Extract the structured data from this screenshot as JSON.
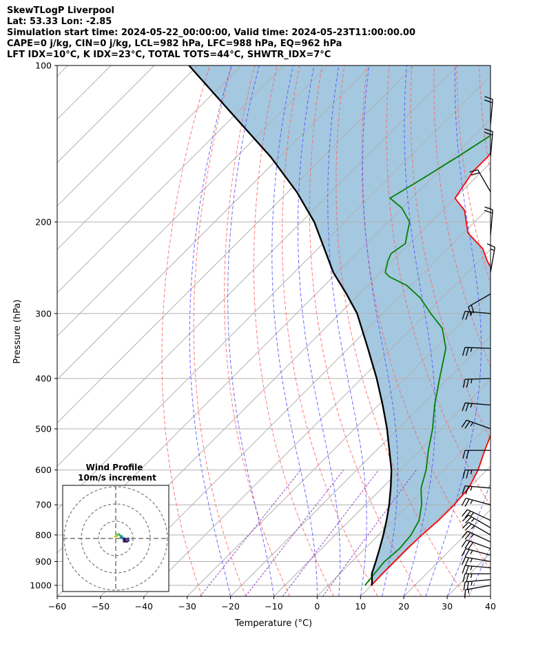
{
  "header": {
    "line1": "SkewTLogP Liverpool",
    "line2": "Lat: 53.33   Lon: -2.85",
    "line3": "Simulation start time: 2024-05-22_00:00:00, Valid time: 2024-05-23T11:00:00.00",
    "line4": "CAPE=0 j/kg, CIN=0 j/kg, LCL=982 hPa, LFC=988 hPa, EQ=962 hPa",
    "line5": "LFT IDX=10°C, K IDX=23°C, TOTAL TOTS=44°C, SHWTR_IDX=7°C"
  },
  "chart_data": {
    "type": "line",
    "title": "SkewTLogP Liverpool",
    "xlabel": "Temperature (°C)",
    "ylabel": "Pressure (hPa)",
    "xlim": [
      -60,
      40
    ],
    "ylim": [
      1050,
      100
    ],
    "yscale": "log",
    "skew": true,
    "grid": true,
    "xticks": [
      -60,
      -50,
      -40,
      -30,
      -20,
      -10,
      0,
      10,
      20,
      30,
      40
    ],
    "xtick_labels": [
      "−60",
      "−50",
      "−40",
      "−30",
      "−20",
      "−10",
      "0",
      "10",
      "20",
      "30",
      "40"
    ],
    "yticks": [
      1000,
      900,
      800,
      700,
      600,
      500,
      400,
      300,
      200,
      100
    ],
    "ytick_labels": [
      "1000",
      "900",
      "800",
      "700",
      "600",
      "500",
      "400",
      "300",
      "200",
      "100"
    ],
    "series": [
      {
        "name": "Temperature",
        "color": "#ff0000",
        "points": [
          [
            10,
            1000
          ],
          [
            9.8,
            950
          ],
          [
            9.8,
            900
          ],
          [
            9.8,
            850
          ],
          [
            10.0,
            800
          ],
          [
            10.5,
            750
          ],
          [
            10.5,
            700
          ],
          [
            10,
            650
          ],
          [
            8,
            600
          ],
          [
            5,
            550
          ],
          [
            2,
            500
          ],
          [
            -2.5,
            450
          ],
          [
            -8,
            400
          ],
          [
            -14,
            350
          ],
          [
            -21,
            310
          ],
          [
            -25,
            295
          ],
          [
            -28.5,
            275
          ],
          [
            -29,
            270
          ],
          [
            -31,
            260
          ],
          [
            -34,
            250
          ],
          [
            -38,
            238
          ],
          [
            -42,
            225
          ],
          [
            -49,
            210
          ],
          [
            -55,
            190
          ],
          [
            -60,
            180
          ],
          [
            -62,
            160
          ],
          [
            -62,
            150
          ],
          [
            -63,
            140
          ],
          [
            -64,
            130
          ],
          [
            -65,
            120
          ],
          [
            -65,
            110
          ],
          [
            -66,
            100
          ]
        ]
      },
      {
        "name": "Dewpoint",
        "color": "#008000",
        "points": [
          [
            8.5,
            1000
          ],
          [
            8,
            950
          ],
          [
            7.5,
            900
          ],
          [
            8,
            850
          ],
          [
            7.5,
            800
          ],
          [
            6,
            750
          ],
          [
            3,
            700
          ],
          [
            -1,
            650
          ],
          [
            -4,
            600
          ],
          [
            -8,
            550
          ],
          [
            -12,
            500
          ],
          [
            -17,
            450
          ],
          [
            -22,
            400
          ],
          [
            -27.5,
            350
          ],
          [
            -33,
            320
          ],
          [
            -39,
            300
          ],
          [
            -45,
            280
          ],
          [
            -51,
            265
          ],
          [
            -57,
            255
          ],
          [
            -59,
            250
          ],
          [
            -61,
            238
          ],
          [
            -62,
            230
          ],
          [
            -61,
            220
          ],
          [
            -63,
            210
          ],
          [
            -65,
            200
          ],
          [
            -70,
            188
          ],
          [
            -75,
            180
          ],
          [
            -72,
            165
          ],
          [
            -69,
            150
          ],
          [
            -66,
            135
          ],
          [
            -63,
            120
          ],
          [
            -60,
            110
          ],
          [
            -57,
            100
          ]
        ]
      },
      {
        "name": "Parcel",
        "color": "#000000",
        "points": [
          [
            10,
            1000
          ],
          [
            9.5,
            988
          ],
          [
            7.4,
            950
          ],
          [
            5.5,
            900
          ],
          [
            3.4,
            850
          ],
          [
            1.1,
            800
          ],
          [
            -1.5,
            750
          ],
          [
            -4.5,
            700
          ],
          [
            -8,
            650
          ],
          [
            -12,
            600
          ],
          [
            -17,
            550
          ],
          [
            -22.5,
            500
          ],
          [
            -29,
            450
          ],
          [
            -36.5,
            400
          ],
          [
            -45.5,
            350
          ],
          [
            -56,
            300
          ],
          [
            -63,
            275
          ],
          [
            -71,
            250
          ],
          [
            -87,
            200
          ],
          [
            -98,
            175
          ],
          [
            -112,
            150
          ],
          [
            -130,
            125
          ],
          [
            -152,
            100
          ]
        ]
      }
    ],
    "shading_color": "#a4c8e0",
    "dry_adiabat_color": "#ff6060",
    "moist_adiabat_color": "#5050ff",
    "mixing_ratio_color": "#9040c0",
    "wind_barbs": {
      "units": "knots",
      "levels": [
        {
          "p": 1000,
          "spd": 17,
          "dir": 260
        },
        {
          "p": 975,
          "spd": 22,
          "dir": 265
        },
        {
          "p": 950,
          "spd": 23,
          "dir": 270
        },
        {
          "p": 925,
          "spd": 24,
          "dir": 275
        },
        {
          "p": 900,
          "spd": 26,
          "dir": 280
        },
        {
          "p": 875,
          "spd": 27,
          "dir": 285
        },
        {
          "p": 850,
          "spd": 28,
          "dir": 290
        },
        {
          "p": 825,
          "spd": 27,
          "dir": 295
        },
        {
          "p": 800,
          "spd": 26,
          "dir": 300
        },
        {
          "p": 775,
          "spd": 25,
          "dir": 300
        },
        {
          "p": 750,
          "spd": 24,
          "dir": 295
        },
        {
          "p": 700,
          "spd": 22,
          "dir": 285
        },
        {
          "p": 650,
          "spd": 22,
          "dir": 275
        },
        {
          "p": 600,
          "spd": 21,
          "dir": 270
        },
        {
          "p": 550,
          "spd": 20,
          "dir": 270
        },
        {
          "p": 500,
          "spd": 22,
          "dir": 290
        },
        {
          "p": 450,
          "spd": 22,
          "dir": 275
        },
        {
          "p": 400,
          "spd": 25,
          "dir": 268
        },
        {
          "p": 350,
          "spd": 22,
          "dir": 272
        },
        {
          "p": 300,
          "spd": 23,
          "dir": 275
        },
        {
          "p": 275,
          "spd": 20,
          "dir": 240
        },
        {
          "p": 250,
          "spd": 15,
          "dir": 10
        },
        {
          "p": 212,
          "spd": 20,
          "dir": 5
        },
        {
          "p": 175,
          "spd": 20,
          "dir": 330
        },
        {
          "p": 150,
          "spd": 20,
          "dir": 5
        },
        {
          "p": 130,
          "spd": 20,
          "dir": 5
        }
      ]
    },
    "inset": {
      "title": "Wind Profile",
      "subtitle": "10m/s increment",
      "ring_step_ms": 10,
      "hodograph_uv": [
        [
          -0.5,
          1.0
        ],
        [
          0.0,
          1.3
        ],
        [
          0.6,
          1.3
        ],
        [
          1.0,
          2.2
        ],
        [
          1.6,
          2.6
        ],
        [
          2.1,
          2.2
        ],
        [
          2.4,
          1.8
        ],
        [
          3.0,
          1.4
        ],
        [
          3.5,
          1.3
        ],
        [
          3.4,
          1.0
        ],
        [
          3.0,
          0.6
        ],
        [
          3.4,
          0.3
        ],
        [
          4.6,
          0.3
        ],
        [
          4.4,
          -0.5
        ],
        [
          4.8,
          -0.6
        ],
        [
          6.2,
          -0.4
        ],
        [
          7.3,
          0.0
        ],
        [
          7.4,
          -1.3
        ],
        [
          6.6,
          -1.8
        ],
        [
          4.7,
          -1.8
        ],
        [
          5.3,
          -1.2
        ],
        [
          5.1,
          -0.7
        ],
        [
          5.3,
          -0.2
        ]
      ]
    }
  }
}
